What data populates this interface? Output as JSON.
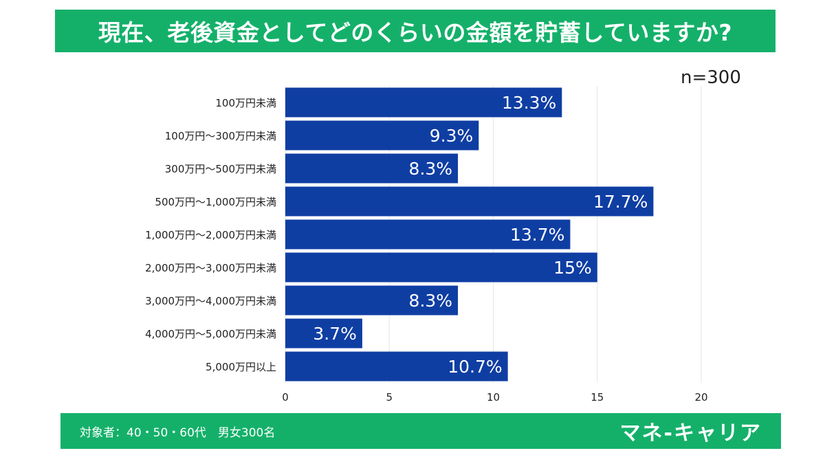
{
  "title": "現在、老後資金としてどのくらいの金額を貯蓄していますか?",
  "sample_size": "n=300",
  "footer": {
    "respondents": "対象者：40・50・60代　男女300名",
    "brand": "マネ-キャリア"
  },
  "colors": {
    "banner": "#14b06a",
    "bar": "#0f3ea3",
    "grid": "#e6e6e6"
  },
  "chart_data": {
    "type": "bar",
    "orientation": "horizontal",
    "categories": [
      "100万円未満",
      "100万円〜300万円未満",
      "300万円〜500万円未満",
      "500万円〜1,000万円未満",
      "1,000万円〜2,000万円未満",
      "2,000万円〜3,000万円未満",
      "3,000万円〜4,000万円未満",
      "4,000万円〜5,000万円未満",
      "5,000万円以上"
    ],
    "values": [
      13.3,
      9.3,
      8.3,
      17.7,
      13.7,
      15,
      8.3,
      3.7,
      10.7
    ],
    "data_labels": [
      "13.3%",
      "9.3%",
      "8.3%",
      "17.7%",
      "13.7%",
      "15%",
      "8.3%",
      "3.7%",
      "10.7%"
    ],
    "xlim": [
      0,
      20
    ],
    "xticks": [
      "0",
      "5",
      "10",
      "15",
      "20"
    ],
    "grid": true
  }
}
